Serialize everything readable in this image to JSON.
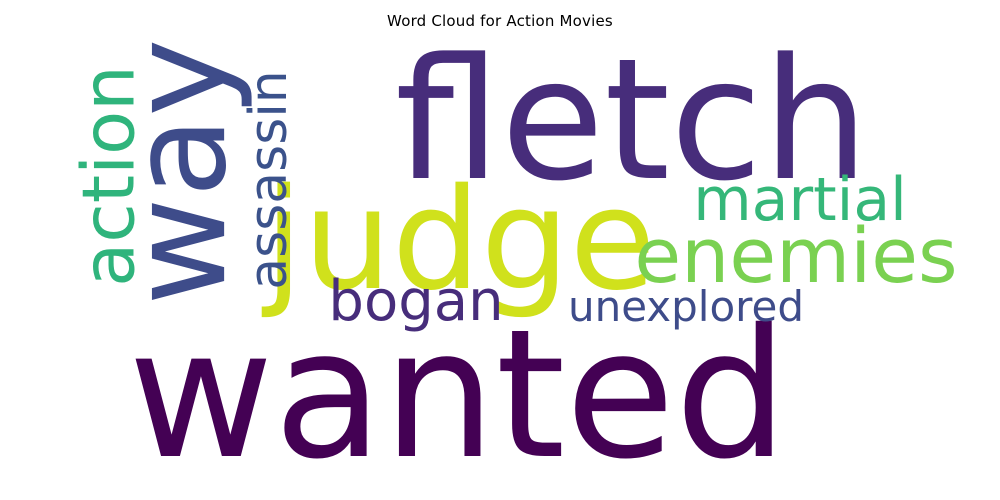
{
  "chart_data": {
    "type": "wordcloud",
    "title": "Word Cloud for Action Movies",
    "xlabel": "",
    "ylabel": "",
    "grid": false,
    "words": [
      {
        "text": "wanted",
        "weight": 1.0,
        "color": "#440154"
      },
      {
        "text": "fletch",
        "weight": 0.92,
        "color": "#472d7b"
      },
      {
        "text": "judge",
        "weight": 0.82,
        "color": "#d0e11c"
      },
      {
        "text": "way",
        "weight": 0.76,
        "color": "#3e4c8a"
      },
      {
        "text": "enemies",
        "weight": 0.45,
        "color": "#7ad151"
      },
      {
        "text": "action",
        "weight": 0.43,
        "color": "#2fb47c"
      },
      {
        "text": "martial",
        "weight": 0.38,
        "color": "#35b779"
      },
      {
        "text": "bogan",
        "weight": 0.36,
        "color": "#472d7b"
      },
      {
        "text": "assassin",
        "weight": 0.34,
        "color": "#3b528b"
      },
      {
        "text": "unexplored",
        "weight": 0.28,
        "color": "#3e4c8a"
      }
    ]
  }
}
